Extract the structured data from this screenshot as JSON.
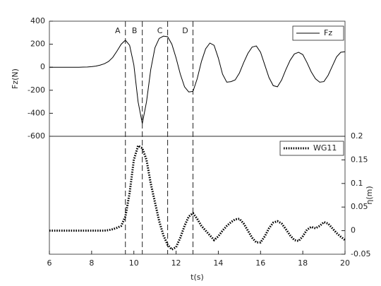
{
  "chart_data": [
    {
      "type": "line",
      "ylabel": "Fz(N)",
      "y_axis_side": "left",
      "legend": "northeast",
      "xlim": [
        6,
        20
      ],
      "ylim": [
        -600,
        400
      ],
      "yticks": [
        -600,
        -400,
        -200,
        0,
        200,
        400
      ],
      "markers": [
        {
          "label": "A",
          "x": 9.6
        },
        {
          "label": "B",
          "x": 10.4
        },
        {
          "label": "C",
          "x": 11.6
        },
        {
          "label": "D",
          "x": 12.8
        }
      ],
      "x": [
        6.0,
        6.2,
        6.4,
        6.6,
        6.8,
        7.0,
        7.2,
        7.4,
        7.6,
        7.8,
        8.0,
        8.2,
        8.4,
        8.6,
        8.8,
        9.0,
        9.2,
        9.4,
        9.6,
        9.8,
        10.0,
        10.2,
        10.4,
        10.6,
        10.8,
        11.0,
        11.2,
        11.4,
        11.6,
        11.8,
        12.0,
        12.2,
        12.4,
        12.6,
        12.8,
        13.0,
        13.2,
        13.4,
        13.6,
        13.8,
        14.0,
        14.2,
        14.4,
        14.6,
        14.8,
        15.0,
        15.2,
        15.4,
        15.6,
        15.8,
        16.0,
        16.2,
        16.4,
        16.6,
        16.8,
        17.0,
        17.2,
        17.4,
        17.6,
        17.8,
        18.0,
        18.2,
        18.4,
        18.6,
        18.8,
        19.0,
        19.2,
        19.4,
        19.6,
        19.8,
        20.0
      ],
      "series": [
        {
          "name": "Fz",
          "color": "#000000",
          "line_style": "solid",
          "values": [
            0,
            0,
            0,
            0,
            0,
            0,
            0,
            0,
            1,
            2,
            5,
            10,
            18,
            30,
            50,
            85,
            140,
            200,
            235,
            190,
            20,
            -300,
            -490,
            -300,
            -20,
            170,
            250,
            270,
            265,
            200,
            80,
            -60,
            -170,
            -215,
            -210,
            -100,
            50,
            160,
            210,
            190,
            80,
            -60,
            -130,
            -125,
            -110,
            -50,
            40,
            120,
            175,
            185,
            130,
            20,
            -90,
            -160,
            -170,
            -110,
            -20,
            60,
            115,
            130,
            110,
            40,
            -40,
            -100,
            -130,
            -125,
            -70,
            10,
            90,
            130,
            135
          ]
        }
      ]
    },
    {
      "type": "line",
      "ylabel": "η(m)",
      "xlabel": "t(s)",
      "y_axis_side": "right",
      "legend": "northeast",
      "xlim": [
        6,
        20
      ],
      "xticks": [
        6,
        8,
        10,
        12,
        14,
        16,
        18,
        20
      ],
      "ylim": [
        -0.05,
        0.2
      ],
      "yticks": [
        -0.05,
        0,
        0.05,
        0.1,
        0.15,
        0.2
      ],
      "x": [
        6.0,
        6.2,
        6.4,
        6.6,
        6.8,
        7.0,
        7.2,
        7.4,
        7.6,
        7.8,
        8.0,
        8.2,
        8.4,
        8.6,
        8.8,
        9.0,
        9.2,
        9.4,
        9.6,
        9.8,
        10.0,
        10.2,
        10.4,
        10.6,
        10.8,
        11.0,
        11.2,
        11.4,
        11.6,
        11.8,
        12.0,
        12.2,
        12.4,
        12.6,
        12.8,
        13.0,
        13.2,
        13.4,
        13.6,
        13.8,
        14.0,
        14.2,
        14.4,
        14.6,
        14.8,
        15.0,
        15.2,
        15.4,
        15.6,
        15.8,
        16.0,
        16.2,
        16.4,
        16.6,
        16.8,
        17.0,
        17.2,
        17.4,
        17.6,
        17.8,
        18.0,
        18.2,
        18.4,
        18.6,
        18.8,
        19.0,
        19.2,
        19.4,
        19.6,
        19.8,
        20.0
      ],
      "series": [
        {
          "name": "WG11",
          "color": "#000000",
          "line_style": "dotted",
          "values": [
            0,
            0,
            0,
            0,
            0,
            0,
            0,
            0,
            0,
            0,
            0,
            0,
            0,
            0,
            0.001,
            0.003,
            0.006,
            0.01,
            0.03,
            0.08,
            0.15,
            0.18,
            0.175,
            0.15,
            0.1,
            0.06,
            0.02,
            -0.01,
            -0.03,
            -0.04,
            -0.035,
            -0.015,
            0.01,
            0.03,
            0.037,
            0.025,
            0.01,
            0,
            -0.01,
            -0.02,
            -0.012,
            0,
            0.01,
            0.018,
            0.024,
            0.025,
            0.015,
            0,
            -0.015,
            -0.025,
            -0.025,
            -0.012,
            0.005,
            0.017,
            0.02,
            0.015,
            0.003,
            -0.01,
            -0.02,
            -0.022,
            -0.012,
            0.002,
            0.008,
            0.005,
            0.01,
            0.018,
            0.015,
            0.005,
            -0.005,
            -0.013,
            -0.02
          ]
        }
      ]
    }
  ]
}
